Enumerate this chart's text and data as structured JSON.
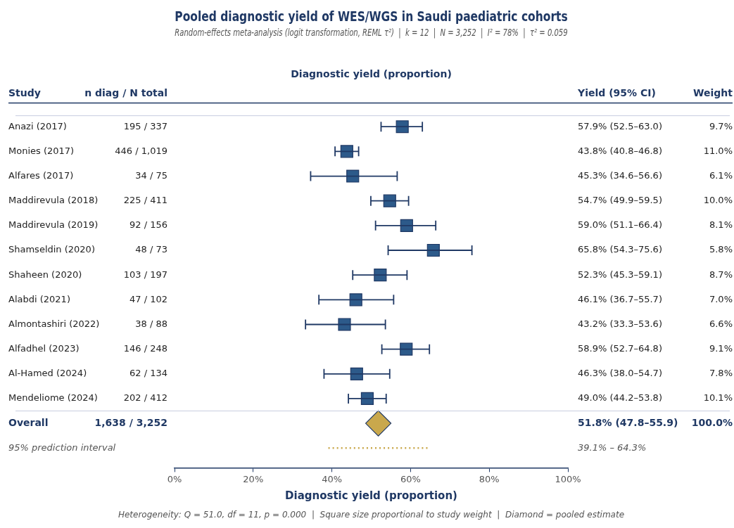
{
  "chart_data": {
    "type": "scatter",
    "orientation": "horizontal",
    "title": "Pooled diagnostic yield of WES/WGS in Saudi paediatric cohorts",
    "subtitle": "Random-effects meta-analysis (logit transformation, REML τ²)  |  k = 12  |  N = 3,252  |  I² = 78%  |  τ² = 0.059",
    "xlabel": "Diagnostic yield (proportion)",
    "categories": [
      "Anazi (2017)",
      "Monies (2017)",
      "Alfares (2017)",
      "Maddirevula (2018)",
      "Maddirevula (2019)",
      "Shamseldin (2020)",
      "Shaheen (2020)",
      "Alabdi (2021)",
      "Almontashiri (2022)",
      "Alfadhel (2023)",
      "Al-Hamed (2024)",
      "Mendeliome (2024)",
      "Overall",
      "95% prediction interval"
    ],
    "series": [
      {
        "marker": "square",
        "color": "#2d5a8a",
        "values": [
          57.9,
          43.8,
          45.3,
          54.7,
          59.0,
          65.8,
          52.3,
          46.1,
          43.2,
          58.9,
          46.3,
          49.0,
          null,
          null
        ],
        "errors": [
          [
            52.5,
            63.0
          ],
          [
            40.8,
            46.8
          ],
          [
            34.6,
            56.6
          ],
          [
            49.9,
            59.5
          ],
          [
            51.1,
            66.4
          ],
          [
            54.3,
            75.6
          ],
          [
            45.3,
            59.1
          ],
          [
            36.7,
            55.7
          ],
          [
            33.3,
            53.6
          ],
          [
            52.7,
            64.8
          ],
          [
            38.0,
            54.7
          ],
          [
            44.2,
            53.8
          ],
          null,
          null
        ]
      },
      {
        "marker": "diamond",
        "color": "#c9a84c",
        "values": [
          null,
          null,
          null,
          null,
          null,
          null,
          null,
          null,
          null,
          null,
          null,
          null,
          51.8,
          null
        ]
      },
      {
        "type": "line",
        "line_style": "dotted",
        "marker": "none",
        "color": "#c9a84c",
        "x": [
          "95% prediction interval",
          "95% prediction interval"
        ],
        "values": [
          39.1,
          64.3
        ]
      }
    ],
    "xlim": [
      0,
      100
    ],
    "xticks": [
      {
        "value": 0,
        "label": "0%"
      },
      {
        "value": 20,
        "label": "20%"
      },
      {
        "value": 40,
        "label": "40%"
      },
      {
        "value": 60,
        "label": "60%"
      },
      {
        "value": 80,
        "label": "80%"
      },
      {
        "value": 100,
        "label": "100%"
      }
    ],
    "annotations": [
      "Diagnostic yield (proportion)",
      "Study",
      "n diag / N total",
      "Yield (95% CI)",
      "Weight",
      "Heterogeneity: Q = 51.0, df = 11, p = 0.000  |  Square size proportional to study weight  |  Diamond = pooled estimate",
      "195 / 337",
      "57.9% (52.5–63.0)",
      "9.7%",
      "446 / 1,019",
      "43.8% (40.8–46.8)",
      "11.0%",
      "34 / 75",
      "45.3% (34.6–56.6)",
      "6.1%",
      "225 / 411",
      "54.7% (49.9–59.5)",
      "10.0%",
      "92 / 156",
      "59.0% (51.1–66.4)",
      "8.1%",
      "48 / 73",
      "65.8% (54.3–75.6)",
      "5.8%",
      "103 / 197",
      "52.3% (45.3–59.1)",
      "8.7%",
      "47 / 102",
      "46.1% (36.7–55.7)",
      "7.0%",
      "38 / 88",
      "43.2% (33.3–53.6)",
      "6.6%",
      "146 / 248",
      "58.9% (52.7–64.8)",
      "9.1%",
      "62 / 134",
      "46.3% (38.0–54.7)",
      "7.8%",
      "202 / 412",
      "49.0% (44.2–53.8)",
      "10.1%",
      "1,638 / 3,252",
      "51.8% (47.8–55.9)",
      "100.0%",
      "39.1% – 64.3%"
    ]
  }
}
